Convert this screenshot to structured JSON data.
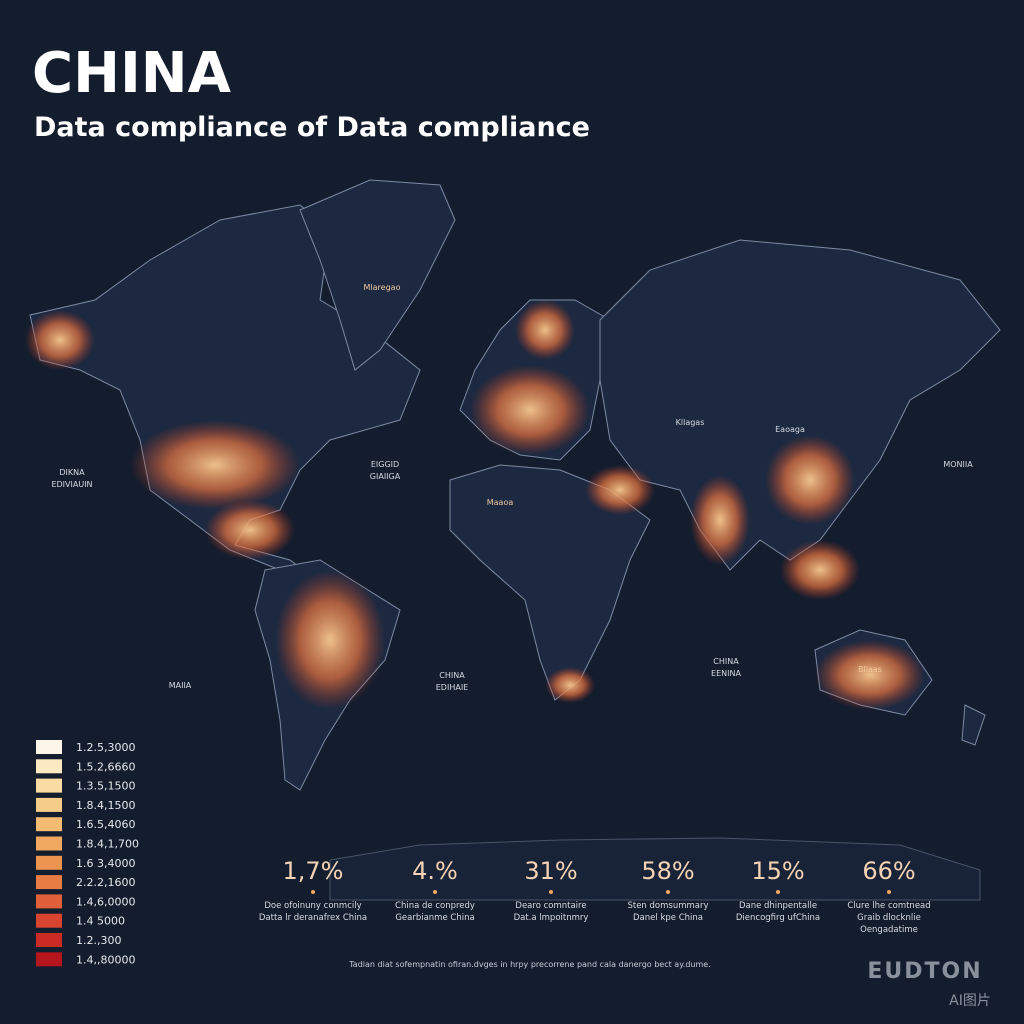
{
  "header": {
    "title": "CHINA",
    "subtitle": "Data compliance of Data compliance"
  },
  "map": {
    "labels": [
      {
        "lines": [
          "Mlaregao"
        ]
      },
      {
        "lines": [
          "DIKNA",
          "EDIVIAUIN"
        ]
      },
      {
        "lines": [
          "EIGGID",
          "GIAIIGA"
        ]
      },
      {
        "lines": [
          "Kllagas"
        ]
      },
      {
        "lines": [
          "Eaoaga"
        ]
      },
      {
        "lines": [
          "MONIIA"
        ]
      },
      {
        "lines": [
          "MAIIA"
        ]
      },
      {
        "lines": [
          "CHINA",
          "EDIHAIE"
        ]
      },
      {
        "lines": [
          "CHINA",
          "EENINA"
        ]
      },
      {
        "lines": [
          "Bllaas"
        ]
      },
      {
        "lines": [
          "Maaoa"
        ]
      }
    ]
  },
  "legend": {
    "items": [
      {
        "label": "1.2.5,3000",
        "color": "#fdf6e8"
      },
      {
        "label": "1.5.2,6660",
        "color": "#fbe9c2"
      },
      {
        "label": "1.3.5,1500",
        "color": "#f8dca4"
      },
      {
        "label": "1.8.4,1500",
        "color": "#f6cd88"
      },
      {
        "label": "1.6.5,4060",
        "color": "#f3bc72"
      },
      {
        "label": "1.8.4,1,700",
        "color": "#f0a860"
      },
      {
        "label": "1.6 3,4000",
        "color": "#ec9450"
      },
      {
        "label": "2.2.2,1600",
        "color": "#e77c44"
      },
      {
        "label": "1.4,6,0000",
        "color": "#e1603a"
      },
      {
        "label": "1.4 5000",
        "color": "#d84430"
      },
      {
        "label": "1.2.,300",
        "color": "#cc2a25"
      },
      {
        "label": "1.4,,80000",
        "color": "#b5151c"
      }
    ]
  },
  "stats": [
    {
      "value": "1,7%",
      "caption": [
        "Doe ofoinuny conmcily",
        "Datta lr deranafrex China"
      ]
    },
    {
      "value": "4.%",
      "caption": [
        "China de conpredy",
        "Gearbianme China"
      ]
    },
    {
      "value": "31%",
      "caption": [
        "Dearo comntaire",
        "Dat.a lmpoitnmry"
      ]
    },
    {
      "value": "58%",
      "caption": [
        "Sten domsummary",
        "Danel kpe China"
      ]
    },
    {
      "value": "15%",
      "caption": [
        "Dane dhinpentalle",
        "Diencogfirg ufChina"
      ]
    },
    {
      "value": "66%",
      "caption": [
        "Clure lhe comtnead",
        "Graib dlocknlie",
        "Oengadatime"
      ]
    }
  ],
  "footnote": "Tadian diat sofempnatin ofiran.dvges in hrpy precorrene pand cala danergo bect ay.dume.",
  "watermark": {
    "brand": "EUDTON",
    "tag": "AI图片"
  }
}
